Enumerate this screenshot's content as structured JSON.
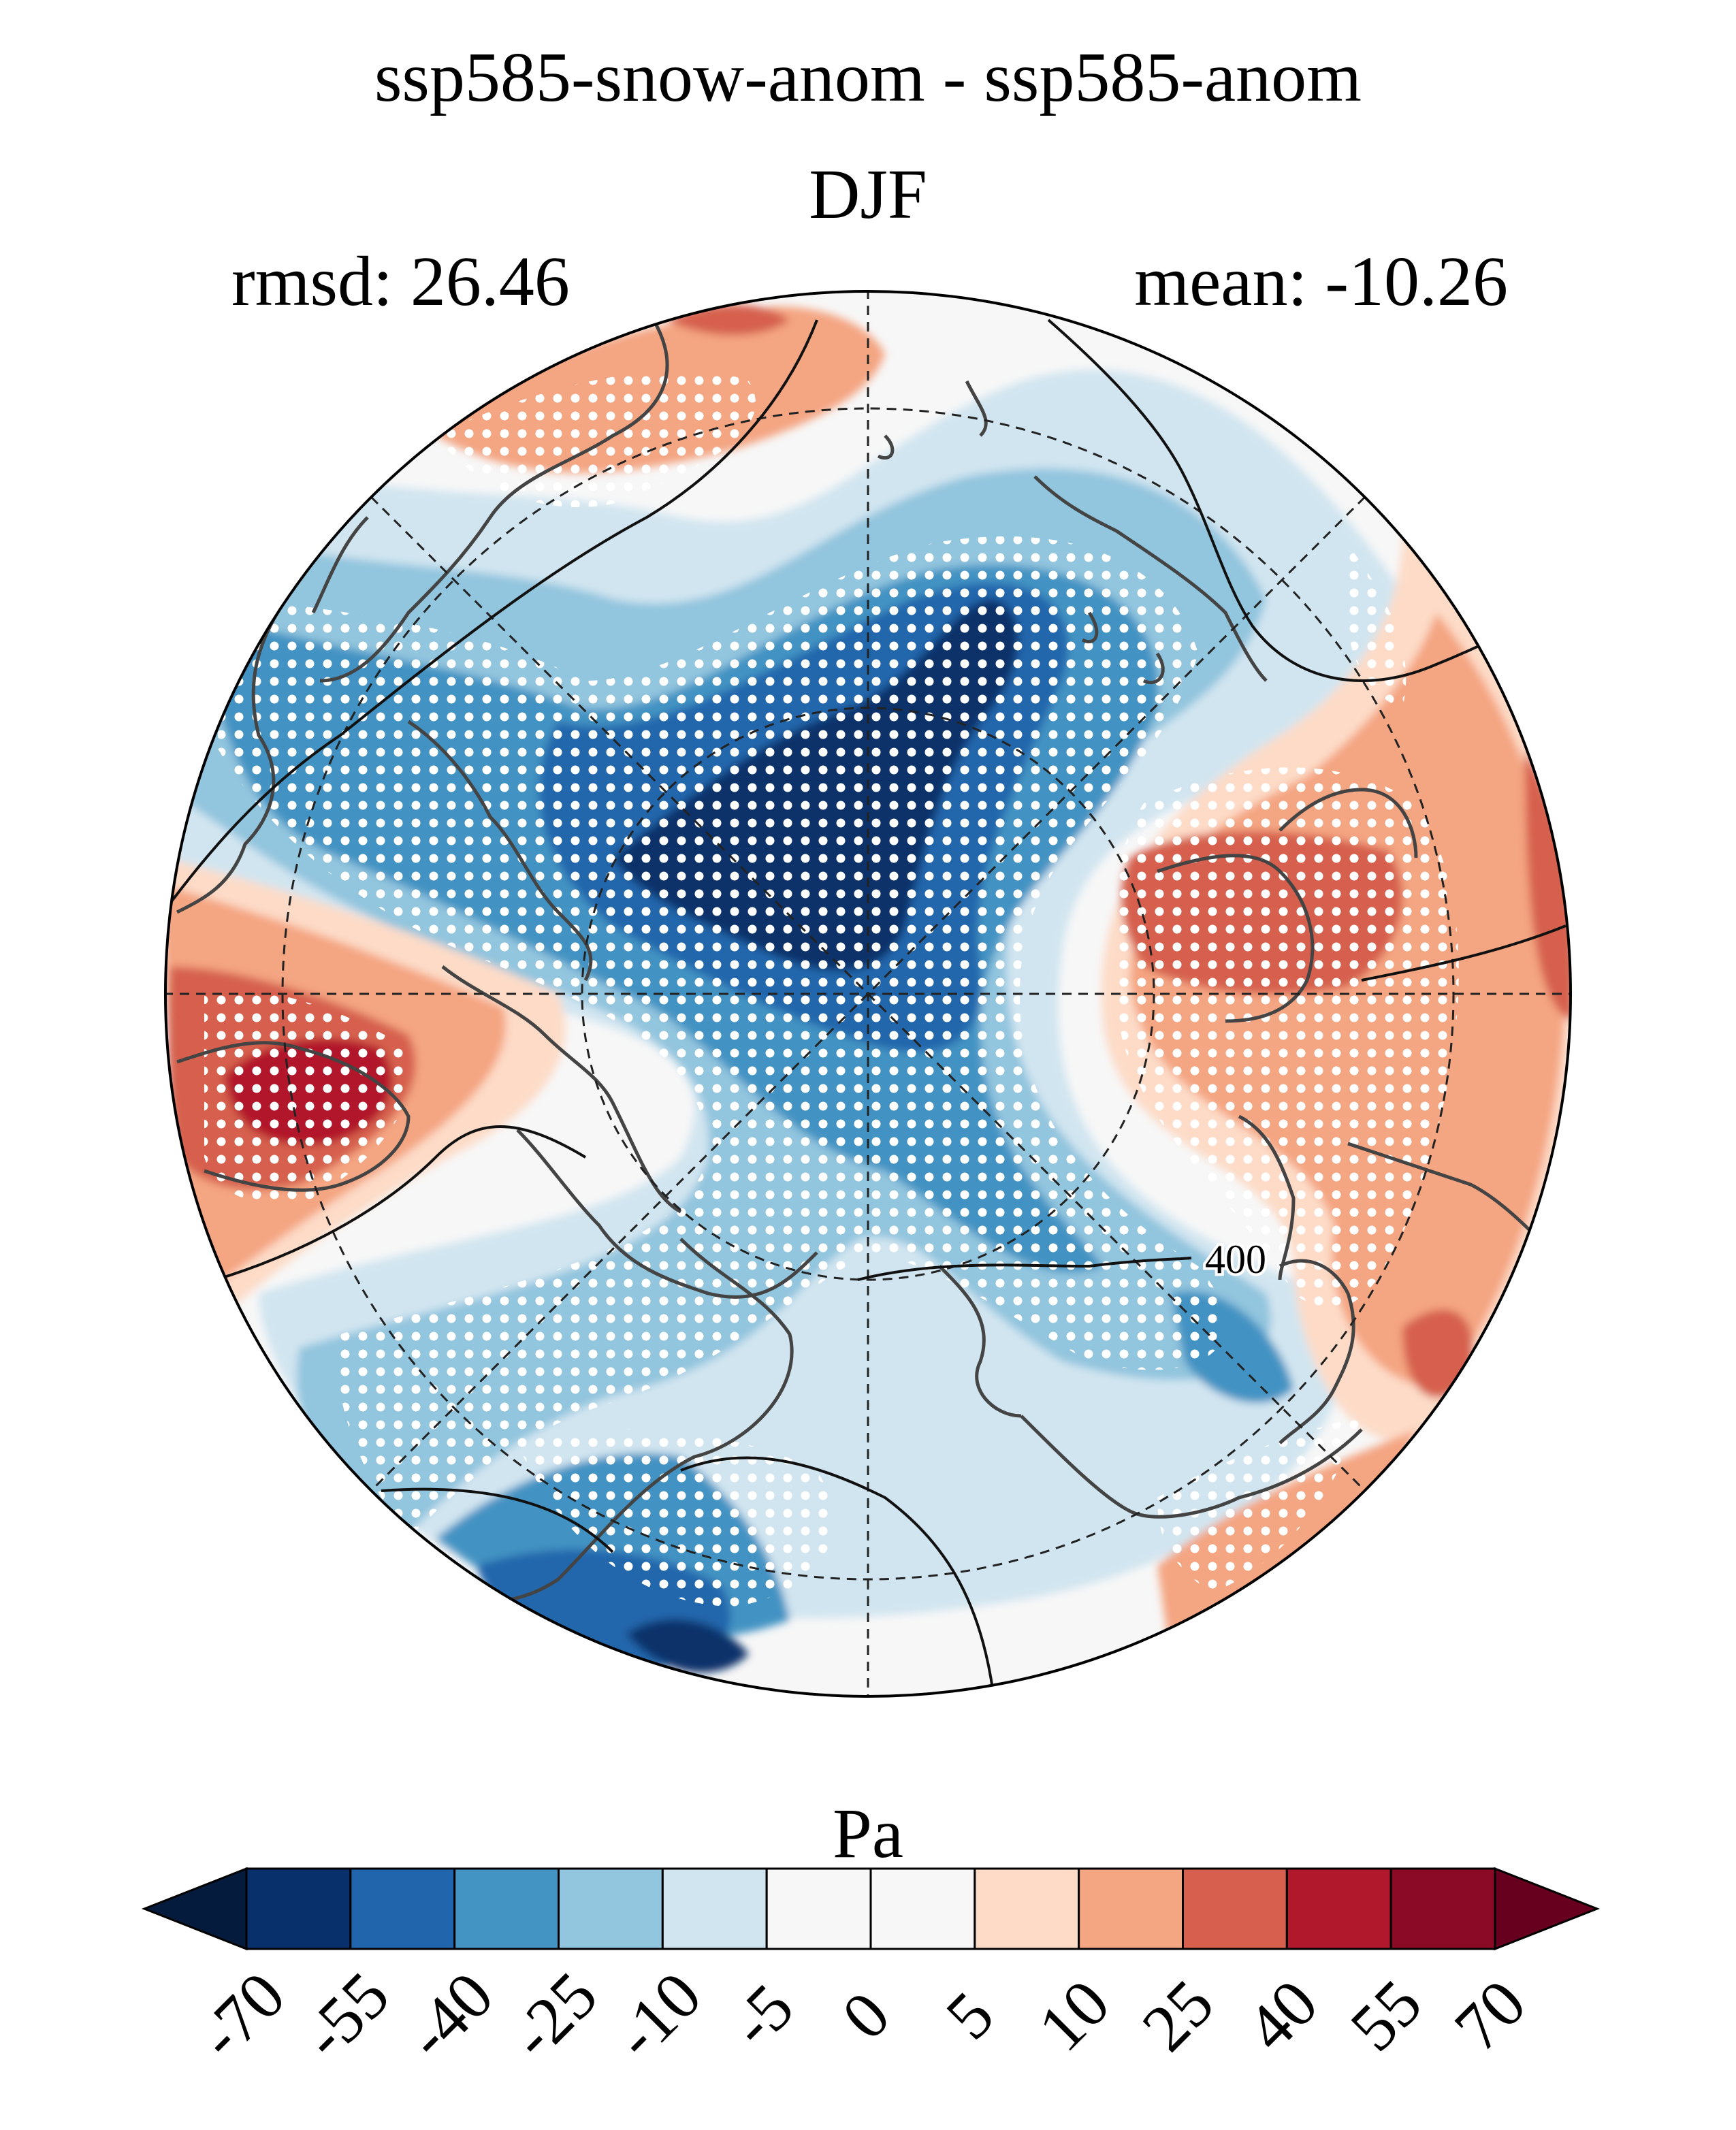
{
  "title": {
    "line1": "ssp585-snow-anom - ssp585-anom",
    "line2": "DJF",
    "rmsd": "rmsd: 26.46",
    "mean": "mean: -10.26"
  },
  "map": {
    "projection": "north-polar-stereographic",
    "contour_label": "400",
    "stippling": "white dots mark significant regions"
  },
  "colorbar": {
    "unit": "Pa",
    "tick_labels": [
      "-70",
      "-55",
      "-40",
      "-25",
      "-10",
      "-5",
      "0",
      "5",
      "10",
      "25",
      "40",
      "55",
      "70"
    ],
    "bins": [
      {
        "from": -70,
        "to": -55,
        "color": "#08306b"
      },
      {
        "from": -55,
        "to": -40,
        "color": "#2166ac"
      },
      {
        "from": -40,
        "to": -25,
        "color": "#4393c3"
      },
      {
        "from": -25,
        "to": -10,
        "color": "#92c5de"
      },
      {
        "from": -10,
        "to": -5,
        "color": "#d1e5f0"
      },
      {
        "from": -5,
        "to": 0,
        "color": "#f7f7f7"
      },
      {
        "from": 0,
        "to": 5,
        "color": "#f7f7f7"
      },
      {
        "from": 5,
        "to": 10,
        "color": "#fddbc7"
      },
      {
        "from": 10,
        "to": 25,
        "color": "#f4a582"
      },
      {
        "from": 25,
        "to": 40,
        "color": "#d6604d"
      },
      {
        "from": 40,
        "to": 55,
        "color": "#b2182b"
      },
      {
        "from": 55,
        "to": 70,
        "color": "#8b0a26"
      }
    ],
    "extend_low_color": "#041b3d",
    "extend_high_color": "#67001f"
  }
}
